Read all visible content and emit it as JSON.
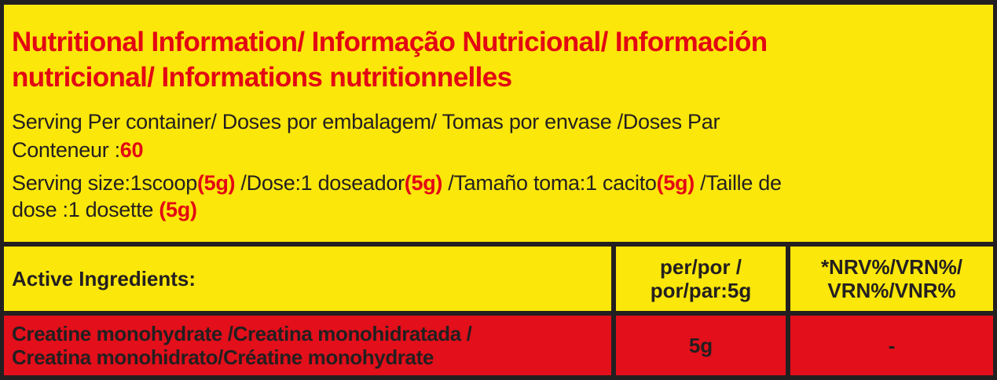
{
  "title": {
    "line1": "Nutritional Information/ Informação Nutricional/ Información",
    "line2": "nutricional/ Informations nutritionnelles"
  },
  "servings": {
    "label_line1": "Serving Per container/ Doses por embalagem/ Tomas por envase /Doses Par",
    "label_line2": "Conteneur :",
    "value": "60"
  },
  "serving_size": {
    "en_label": "Serving size:1scoop",
    "en_value": "(5g)",
    "pt_label": " /Dose:1 doseador",
    "pt_value": "(5g)",
    "es_label": " /Tamaño toma:1 cacito",
    "es_value": "(5g)",
    "fr_label_line1": " /Taille de",
    "fr_label_line2": "dose :1 dosette ",
    "fr_value": "(5g)"
  },
  "table": {
    "headers": {
      "ingredient": "Active Ingredients:",
      "per_line1": "per/por /",
      "per_line2": "por/par:5g",
      "nrv_line1": "*NRV%/VRN%/",
      "nrv_line2": "VRN%/VNR%"
    },
    "rows": [
      {
        "name_line1": "Creatine monohydrate /Creatina monohidratada /",
        "name_line2": "Creatina monohidrato/Créatine monohydrate",
        "amount": "5g",
        "nrv": "-"
      }
    ]
  },
  "colors": {
    "background": "#fbe709",
    "accent_red": "#e30613",
    "row_red": "#e30f1a",
    "border": "#231f20"
  }
}
